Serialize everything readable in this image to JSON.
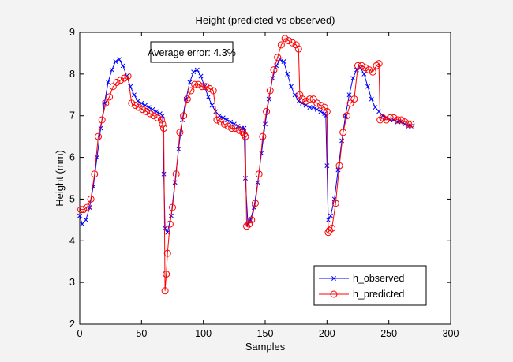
{
  "chart_data": {
    "type": "line",
    "title": "Height (predicted vs observed)",
    "xlabel": "Samples",
    "ylabel": "Height (mm)",
    "xlim": [
      0,
      300
    ],
    "ylim": [
      2,
      9
    ],
    "xticks": [
      0,
      50,
      100,
      150,
      200,
      250,
      300
    ],
    "yticks": [
      2,
      3,
      4,
      5,
      6,
      7,
      8,
      9
    ],
    "grid": false,
    "legend_position": "bottom-right",
    "annotation": "Average error: 4.3%",
    "series": [
      {
        "name": "h_observed",
        "color": "#0000ff",
        "marker": "x",
        "x": [
          0,
          2,
          5,
          8,
          11,
          14,
          17,
          20,
          23,
          26,
          29,
          32,
          35,
          38,
          41,
          44,
          47,
          50,
          53,
          56,
          59,
          62,
          65,
          67,
          68,
          69,
          71,
          74,
          77,
          80,
          83,
          86,
          89,
          92,
          95,
          98,
          101,
          104,
          107,
          110,
          113,
          116,
          119,
          122,
          125,
          128,
          131,
          133,
          134,
          136,
          138,
          141,
          144,
          147,
          150,
          153,
          156,
          159,
          162,
          165,
          168,
          171,
          174,
          177,
          180,
          183,
          186,
          189,
          192,
          195,
          198,
          199,
          200,
          201,
          203,
          206,
          209,
          212,
          215,
          218,
          221,
          224,
          227,
          230,
          233,
          236,
          239,
          242,
          245,
          248,
          251,
          254,
          257,
          260,
          263,
          266,
          268
        ],
        "y": [
          4.6,
          4.4,
          4.5,
          4.8,
          5.3,
          6.0,
          6.7,
          7.3,
          7.8,
          8.1,
          8.3,
          8.35,
          8.2,
          7.95,
          7.7,
          7.5,
          7.35,
          7.3,
          7.25,
          7.2,
          7.15,
          7.1,
          7.05,
          7.0,
          5.6,
          4.3,
          4.2,
          4.6,
          5.4,
          6.2,
          6.9,
          7.4,
          7.8,
          8.05,
          8.1,
          7.95,
          7.7,
          7.45,
          7.25,
          7.1,
          7.0,
          6.95,
          6.9,
          6.85,
          6.8,
          6.75,
          6.7,
          6.7,
          5.5,
          4.4,
          4.5,
          4.8,
          5.4,
          6.1,
          6.8,
          7.4,
          7.9,
          8.2,
          8.35,
          8.3,
          8.0,
          7.7,
          7.5,
          7.35,
          7.3,
          7.25,
          7.2,
          7.2,
          7.15,
          7.1,
          7.05,
          7.0,
          5.8,
          4.5,
          4.6,
          5.0,
          5.7,
          6.4,
          7.0,
          7.5,
          7.9,
          8.1,
          8.15,
          8.0,
          7.7,
          7.4,
          7.2,
          7.1,
          7.0,
          6.95,
          6.9,
          6.9,
          6.85,
          6.85,
          6.8,
          6.75,
          6.75
        ]
      },
      {
        "name": "h_predicted",
        "color": "#ff0000",
        "marker": "o",
        "x": [
          1,
          3,
          6,
          9,
          12,
          15,
          18,
          21,
          24,
          27,
          30,
          33,
          36,
          39,
          42,
          45,
          48,
          51,
          54,
          57,
          60,
          63,
          66,
          67,
          68,
          69,
          70,
          71,
          73,
          75,
          78,
          81,
          84,
          87,
          90,
          93,
          96,
          99,
          102,
          105,
          108,
          111,
          114,
          117,
          120,
          123,
          126,
          129,
          132,
          133,
          134,
          135,
          137,
          139,
          142,
          145,
          148,
          151,
          154,
          157,
          160,
          163,
          166,
          169,
          172,
          175,
          177,
          178,
          180,
          183,
          186,
          189,
          192,
          195,
          198,
          200,
          201,
          202,
          204,
          207,
          210,
          213,
          216,
          219,
          222,
          225,
          228,
          231,
          234,
          237,
          240,
          242,
          243,
          245,
          248,
          251,
          254,
          257,
          260,
          263,
          266,
          268
        ],
        "y": [
          4.75,
          4.75,
          4.8,
          5.0,
          5.6,
          6.5,
          6.9,
          7.3,
          7.45,
          7.7,
          7.8,
          7.85,
          7.9,
          7.95,
          7.3,
          7.25,
          7.2,
          7.15,
          7.1,
          7.05,
          7.0,
          6.95,
          6.9,
          6.8,
          6.7,
          2.8,
          3.2,
          3.7,
          4.4,
          4.8,
          5.6,
          6.6,
          7.0,
          7.4,
          7.6,
          7.75,
          7.75,
          7.7,
          7.7,
          7.65,
          7.6,
          6.9,
          6.85,
          6.8,
          6.75,
          6.7,
          6.7,
          6.65,
          6.6,
          6.55,
          6.5,
          4.35,
          4.4,
          4.5,
          4.9,
          5.6,
          6.5,
          7.1,
          7.6,
          8.1,
          8.4,
          8.7,
          8.85,
          8.8,
          8.75,
          8.7,
          8.6,
          7.5,
          7.4,
          7.35,
          7.4,
          7.4,
          7.3,
          7.25,
          7.2,
          7.1,
          4.2,
          4.25,
          4.3,
          4.9,
          5.8,
          6.6,
          7.0,
          7.3,
          7.4,
          8.2,
          8.2,
          8.15,
          8.1,
          8.05,
          8.2,
          8.25,
          6.9,
          6.95,
          6.9,
          6.95,
          6.95,
          6.9,
          6.9,
          6.85,
          6.8,
          6.8
        ]
      }
    ]
  }
}
